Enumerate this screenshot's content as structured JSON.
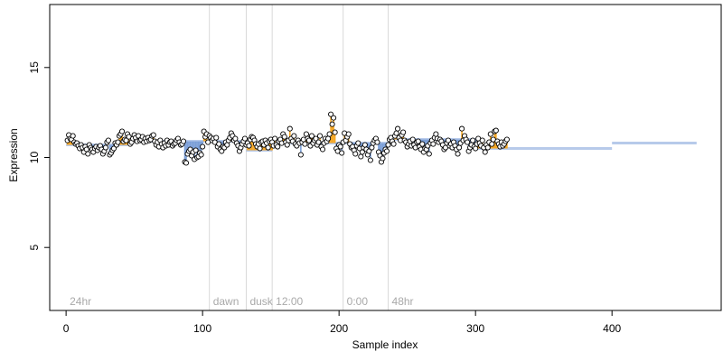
{
  "chart_data": {
    "type": "scatter",
    "title": "",
    "xlabel": "Sample index",
    "ylabel": "Expression",
    "xlim": [
      -12,
      480
    ],
    "ylim": [
      1.5,
      18.5
    ],
    "xticks": [
      0,
      100,
      200,
      300,
      400
    ],
    "yticks": [
      5,
      10,
      15
    ],
    "grid": false,
    "colors": {
      "above": "#f5a623",
      "below": "#7b9fd8",
      "point_fill": "#ffffff",
      "point_edge": "#000000",
      "annotation_line": "#d9d9d9",
      "annotation_text": "#a9a9a9"
    },
    "annotations": [
      {
        "label": "24hr",
        "x": 0,
        "line": false
      },
      {
        "label": "dawn",
        "x": 105,
        "line": true
      },
      {
        "label": "dusk",
        "x": 132,
        "line": true
      },
      {
        "label": "12:00",
        "x": 151,
        "line": true
      },
      {
        "label": "0:00",
        "x": 203,
        "line": true
      },
      {
        "label": "48hr",
        "x": 236,
        "line": true
      }
    ],
    "trend_segments": [
      {
        "x0": 0,
        "x1": 45,
        "y": 10.7
      },
      {
        "x0": 45,
        "x1": 105,
        "y": 10.9
      },
      {
        "x0": 105,
        "x1": 132,
        "y": 10.9
      },
      {
        "x0": 132,
        "x1": 151,
        "y": 10.4
      },
      {
        "x0": 151,
        "x1": 203,
        "y": 10.8
      },
      {
        "x0": 203,
        "x1": 236,
        "y": 10.8
      },
      {
        "x0": 236,
        "x1": 300,
        "y": 11.0
      },
      {
        "x0": 300,
        "x1": 400,
        "y": 10.5
      },
      {
        "x0": 400,
        "x1": 462,
        "y": 10.8
      }
    ],
    "series": [
      {
        "x_start": 1,
        "values": [
          10.95,
          11.25,
          11.05,
          11.0,
          11.2,
          10.85,
          10.75,
          10.8,
          10.65,
          10.5,
          10.7,
          10.55,
          10.3,
          10.6,
          10.45,
          10.2,
          10.7,
          10.55,
          10.45,
          10.3,
          10.5,
          10.6,
          10.4,
          10.55,
          10.65,
          10.45,
          10.2,
          10.35,
          10.55,
          10.85,
          10.95,
          10.15,
          10.25,
          10.4,
          10.5,
          10.8,
          10.7,
          10.85,
          11.2,
          11.3,
          11.45,
          10.9,
          11.0,
          10.95,
          11.3,
          11.15,
          10.75,
          10.85,
          11.05,
          11.25,
          11.1,
          10.9,
          11.2,
          10.95,
          11.0,
          11.15,
          10.85,
          11.05,
          10.9,
          11.1,
          10.95,
          11.0,
          11.2,
          11.25,
          10.9,
          10.7,
          10.85,
          10.6,
          10.95,
          10.75,
          10.55,
          10.8,
          10.65,
          10.95,
          10.7,
          10.85,
          10.9,
          10.65,
          10.75,
          10.8,
          10.95,
          11.05,
          10.85,
          10.7,
          10.75,
          10.9,
          9.75,
          9.7,
          10.2,
          10.35,
          10.45,
          10.1,
          10.3,
          9.9,
          10.4,
          10.0,
          10.05,
          10.25,
          10.15,
          10.6,
          11.45,
          11.15,
          11.3,
          10.85,
          11.2,
          11.1,
          10.95,
          11.05,
          10.85,
          11.1,
          10.6,
          10.75,
          10.45,
          10.35,
          10.6,
          10.55,
          10.85,
          10.7,
          10.95,
          11.1,
          11.35,
          11.2,
          10.95,
          11.05,
          10.8,
          10.65,
          10.35,
          10.55,
          10.75,
          10.9,
          11.05,
          10.7,
          10.8,
          10.65,
          11.0,
          11.15,
          11.1,
          10.95,
          10.75,
          10.6,
          10.75,
          10.5,
          10.85,
          10.9,
          10.7,
          10.95,
          10.8,
          10.55,
          10.9,
          11.0,
          10.85,
          10.65,
          11.05,
          10.7,
          10.6,
          10.9,
          11.0,
          10.8,
          11.3,
          11.15,
          10.85,
          10.7,
          10.95,
          11.6,
          11.05,
          10.9,
          11.2,
          10.75,
          10.65,
          10.95,
          10.8,
          10.15,
          10.85,
          11.0,
          10.75,
          11.3,
          11.05,
          10.95,
          10.65,
          11.2,
          10.8,
          10.95,
          11.05,
          10.7,
          10.85,
          11.2,
          10.6,
          10.45,
          10.8,
          11.05,
          10.9,
          11.05,
          11.3,
          12.4,
          11.85,
          12.2,
          11.4,
          10.5,
          10.35,
          10.7,
          10.6,
          10.25,
          10.85,
          11.35,
          10.95,
          11.15,
          11.3,
          10.75,
          10.55,
          10.6,
          10.4,
          10.2,
          10.65,
          10.8,
          10.5,
          10.05,
          10.3,
          10.55,
          10.7,
          10.45,
          10.15,
          10.35,
          9.85,
          10.55,
          10.8,
          10.95,
          11.05,
          10.85,
          10.3,
          10.1,
          9.75,
          9.95,
          10.25,
          10.45,
          10.35,
          10.7,
          11.0,
          11.1,
          10.9,
          10.75,
          11.2,
          11.35,
          11.6,
          11.1,
          10.95,
          11.25,
          11.4,
          10.95,
          10.85,
          10.6,
          10.75,
          10.9,
          10.65,
          11.0,
          10.7,
          10.55,
          10.85,
          10.9,
          10.6,
          10.45,
          10.75,
          10.3,
          10.5,
          10.45,
          10.65,
          10.2,
          10.8,
          10.95,
          10.75,
          11.1,
          11.3,
          11.05,
          10.85,
          11.0,
          10.9,
          10.7,
          10.45,
          10.55,
          10.8,
          10.95,
          10.65,
          10.75,
          10.55,
          10.85,
          10.65,
          10.45,
          10.2,
          10.55,
          10.8,
          11.6,
          10.95,
          11.2,
          11.0,
          10.85,
          10.35,
          10.55,
          10.7,
          10.95,
          10.6,
          10.5,
          10.75,
          11.05,
          10.8,
          10.65,
          10.95,
          10.55,
          10.3,
          10.7,
          10.55,
          10.85,
          11.3,
          10.75,
          11.0,
          11.45,
          11.5,
          10.9,
          10.75,
          10.6,
          10.85,
          10.65,
          10.75,
          10.9,
          11.0
        ]
      }
    ]
  }
}
